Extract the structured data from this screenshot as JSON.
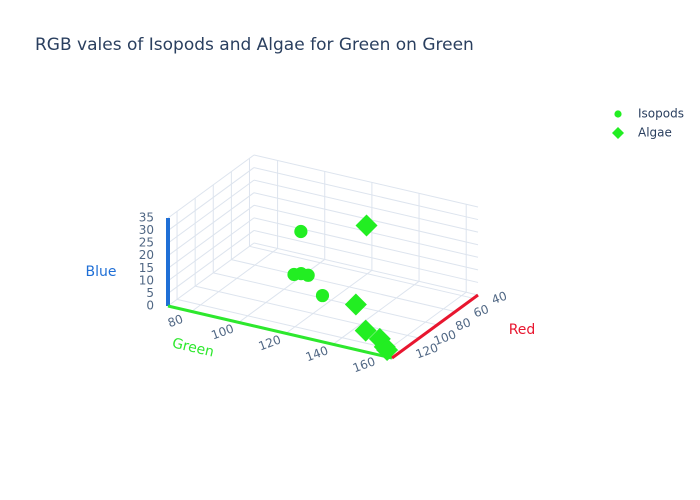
{
  "chart_data": {
    "type": "scatter3d",
    "title": "RGB vales of Isopods and Algae for Green on Green",
    "xlabel": "Red",
    "ylabel": "Green",
    "zlabel": "Blue",
    "xlim": [
      35,
      130
    ],
    "ylim": [
      70,
      165
    ],
    "zlim": [
      0,
      35
    ],
    "xticks": [
      40,
      60,
      80,
      100,
      120
    ],
    "yticks": [
      80,
      100,
      120,
      140,
      160
    ],
    "zticks": [
      0,
      5,
      10,
      15,
      20,
      25,
      30,
      35
    ],
    "axis_colors": {
      "x": "#e8162f",
      "y": "#2de82d",
      "z": "#1f6fd6"
    },
    "legend": "top-right",
    "series": [
      {
        "name": "Isopods",
        "color": "#22ee22",
        "symbol": "circle",
        "x": [
          90,
          95,
          95,
          95,
          100
        ],
        "y": [
          111,
          110,
          113,
          116,
          124
        ],
        "z": [
          28,
          12,
          13,
          13,
          8
        ]
      },
      {
        "name": "Algae",
        "color": "#22ee22",
        "symbol": "diamond",
        "x": [
          80,
          110,
          120,
          120,
          125,
          125
        ],
        "y": [
          135,
          142,
          150,
          156,
          160,
          161
        ],
        "z": [
          33,
          11,
          5,
          3,
          2,
          1
        ]
      }
    ]
  }
}
